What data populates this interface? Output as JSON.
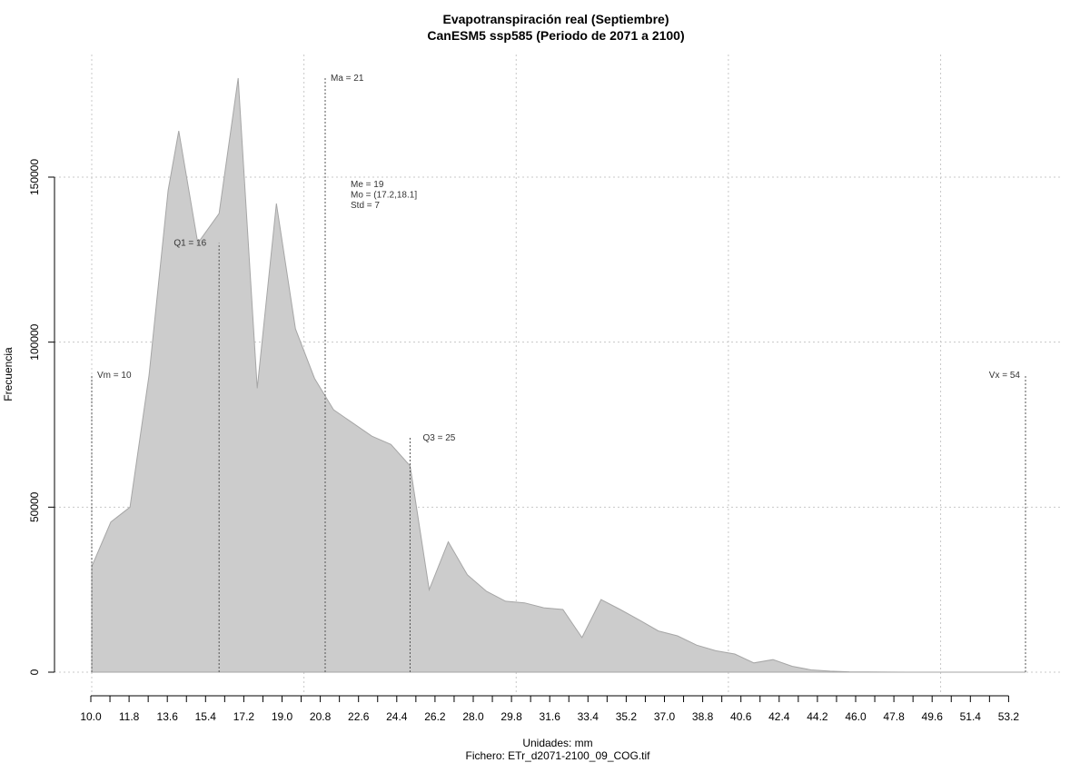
{
  "chart_data": {
    "type": "area",
    "title": "Evapotranspiración real (Septiembre)",
    "subtitle": "CanESM5 ssp585 (Periodo de 2071 a 2100)",
    "xlabel": "Unidades: mm",
    "caption": "Fichero: ETr_d2071-2100_09_COG.tif",
    "ylabel": "Frecuencia",
    "xlim": [
      10.0,
      54.0
    ],
    "ylim": [
      0,
      180000
    ],
    "x_tick_labels": [
      "10.0",
      "11.8",
      "13.6",
      "15.4",
      "17.2",
      "19.0",
      "20.8",
      "22.6",
      "24.4",
      "26.2",
      "28.0",
      "29.8",
      "31.6",
      "33.4",
      "35.2",
      "37.0",
      "38.8",
      "40.6",
      "42.4",
      "44.2",
      "46.0",
      "47.8",
      "49.6",
      "51.4",
      "53.2"
    ],
    "y_ticks": [
      0,
      50000,
      100000,
      150000
    ],
    "y_tick_labels": [
      "0",
      "50000",
      "100000",
      "150000"
    ],
    "grid": true,
    "fill_color": "#cccccc",
    "line_color": "#a6a6a6",
    "x": [
      10.0,
      10.9,
      11.8,
      12.7,
      13.6,
      14.1,
      15.0,
      16.0,
      16.9,
      17.8,
      18.7,
      19.6,
      20.5,
      21.4,
      22.3,
      23.2,
      24.1,
      25.0,
      25.9,
      26.8,
      27.7,
      28.6,
      29.5,
      30.4,
      31.3,
      32.2,
      33.1,
      34.0,
      34.9,
      35.8,
      36.7,
      37.6,
      38.5,
      39.4,
      40.3,
      41.2,
      42.1,
      43.0,
      43.9,
      44.8,
      45.7,
      46.6,
      47.5,
      48.4,
      49.3,
      50.2,
      51.1,
      52.0,
      52.9,
      54.0
    ],
    "y": [
      32000,
      45500,
      50000,
      90000,
      146000,
      164000,
      130000,
      139000,
      180000,
      86000,
      142000,
      104000,
      89000,
      79500,
      75500,
      71500,
      69000,
      62500,
      25000,
      39500,
      29500,
      24500,
      21500,
      21000,
      19500,
      19000,
      10500,
      22000,
      19000,
      15800,
      12500,
      11000,
      8200,
      6500,
      5500,
      2800,
      3800,
      1800,
      700,
      300,
      100,
      50,
      20,
      10,
      5,
      2,
      1,
      0,
      0,
      0
    ],
    "reference_lines": [
      {
        "label": "Vm = 10",
        "x": 10.0,
        "y_top": 90000
      },
      {
        "label": "Q1 = 16",
        "x": 16.0,
        "y_top": 130000
      },
      {
        "label": "Ma = 21",
        "x": 21.0,
        "y_top": 180000
      },
      {
        "label": "Q3 = 25",
        "x": 25.0,
        "y_top": 71000
      },
      {
        "label": "Vx = 54",
        "x": 54.0,
        "y_top": 90000
      }
    ],
    "stats_annotation": [
      "Me = 19",
      "Mo = (17.2,18.1]",
      "Std = 7"
    ]
  }
}
